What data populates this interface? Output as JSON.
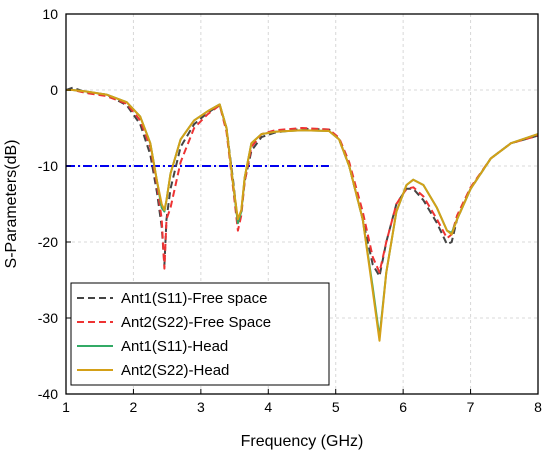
{
  "chart_data": {
    "type": "line",
    "title": "",
    "xlabel": "Frequency (GHz)",
    "ylabel": "S-Parameters(dB)",
    "xlim": [
      1,
      8
    ],
    "ylim": [
      -40,
      10
    ],
    "xticks": [
      1,
      2,
      3,
      4,
      5,
      6,
      7,
      8
    ],
    "yticks": [
      10,
      0,
      -10,
      -20,
      -30,
      -40
    ],
    "grid": true,
    "legend_position": "bottom-left",
    "reference_line": {
      "y": -10,
      "x": [
        1,
        4.9
      ],
      "color": "#0000ee"
    },
    "series": [
      {
        "name": "Ant1(S11)-Free space",
        "color": "#444444",
        "style": "dash",
        "x": [
          1.0,
          1.1,
          1.3,
          1.6,
          1.9,
          2.1,
          2.25,
          2.35,
          2.42,
          2.46,
          2.49,
          2.55,
          2.7,
          2.9,
          3.1,
          3.28,
          3.38,
          3.48,
          3.55,
          3.6,
          3.65,
          3.75,
          3.9,
          4.1,
          4.5,
          4.9,
          5.05,
          5.2,
          5.4,
          5.55,
          5.65,
          5.75,
          5.9,
          6.05,
          6.15,
          6.3,
          6.5,
          6.65,
          6.72,
          6.8,
          7.0,
          7.3,
          7.6,
          8.0
        ],
        "y": [
          0.0,
          0.3,
          -0.3,
          -0.6,
          -2.0,
          -4.5,
          -8.5,
          -13.5,
          -18.0,
          -23.0,
          -17.0,
          -13.0,
          -7.5,
          -4.5,
          -3.0,
          -2.0,
          -5.0,
          -12.0,
          -17.5,
          -16.0,
          -12.0,
          -8.0,
          -6.2,
          -5.6,
          -5.1,
          -5.2,
          -6.5,
          -10.0,
          -17.0,
          -23.0,
          -24.5,
          -20.0,
          -15.0,
          -13.0,
          -13.0,
          -14.5,
          -17.5,
          -20.3,
          -20.0,
          -17.0,
          -13.0,
          -9.0,
          -7.0,
          -6.0
        ]
      },
      {
        "name": "Ant2(S22)-Free Space",
        "color": "#ee3333",
        "style": "dash",
        "x": [
          1.0,
          1.1,
          1.3,
          1.6,
          1.9,
          2.1,
          2.25,
          2.35,
          2.42,
          2.46,
          2.49,
          2.55,
          2.7,
          2.9,
          3.1,
          3.28,
          3.38,
          3.48,
          3.55,
          3.6,
          3.65,
          3.75,
          3.9,
          4.1,
          4.5,
          4.9,
          5.05,
          5.2,
          5.4,
          5.55,
          5.65,
          5.75,
          5.9,
          6.05,
          6.15,
          6.3,
          6.5,
          6.65,
          6.72,
          6.8,
          7.0,
          7.3,
          7.6,
          8.0
        ],
        "y": [
          0.0,
          0.0,
          -0.4,
          -0.8,
          -1.8,
          -4.0,
          -7.5,
          -12.5,
          -17.0,
          -23.5,
          -17.0,
          -15.5,
          -9.5,
          -5.0,
          -3.2,
          -2.0,
          -5.5,
          -13.0,
          -18.5,
          -16.5,
          -12.0,
          -7.5,
          -5.8,
          -5.3,
          -5.0,
          -5.2,
          -6.3,
          -9.5,
          -16.0,
          -22.0,
          -24.0,
          -20.0,
          -15.0,
          -13.0,
          -12.8,
          -14.0,
          -17.0,
          -19.5,
          -19.0,
          -16.5,
          -12.8,
          -9.0,
          -7.0,
          -6.0
        ]
      },
      {
        "name": "Ant1(S11)-Head",
        "color": "#33aa66",
        "style": "solid",
        "x": [
          1.0,
          1.1,
          1.3,
          1.6,
          1.9,
          2.1,
          2.25,
          2.35,
          2.42,
          2.46,
          2.49,
          2.55,
          2.7,
          2.9,
          3.1,
          3.28,
          3.38,
          3.48,
          3.55,
          3.6,
          3.65,
          3.75,
          3.9,
          4.1,
          4.5,
          4.9,
          5.05,
          5.2,
          5.4,
          5.55,
          5.65,
          5.75,
          5.9,
          6.05,
          6.15,
          6.3,
          6.5,
          6.65,
          6.72,
          6.8,
          7.0,
          7.3,
          7.6,
          8.0
        ],
        "y": [
          0.0,
          0.0,
          -0.2,
          -0.6,
          -1.6,
          -3.5,
          -7.0,
          -12.0,
          -15.5,
          -16.0,
          -14.5,
          -11.0,
          -6.5,
          -4.0,
          -2.8,
          -1.9,
          -5.0,
          -12.5,
          -17.5,
          -16.0,
          -11.5,
          -7.0,
          -5.8,
          -5.5,
          -5.3,
          -5.4,
          -6.5,
          -10.0,
          -17.0,
          -26.0,
          -32.5,
          -24.0,
          -16.0,
          -12.5,
          -11.8,
          -12.5,
          -15.5,
          -18.5,
          -18.8,
          -17.0,
          -13.0,
          -9.0,
          -7.0,
          -5.8
        ]
      },
      {
        "name": "Ant2(S22)-Head",
        "color": "#d4a017",
        "style": "solid",
        "x": [
          1.0,
          1.1,
          1.3,
          1.6,
          1.9,
          2.1,
          2.25,
          2.35,
          2.42,
          2.46,
          2.49,
          2.55,
          2.7,
          2.9,
          3.1,
          3.28,
          3.38,
          3.48,
          3.55,
          3.6,
          3.65,
          3.75,
          3.9,
          4.1,
          4.5,
          4.9,
          5.05,
          5.2,
          5.4,
          5.55,
          5.65,
          5.75,
          5.9,
          6.05,
          6.15,
          6.3,
          6.5,
          6.65,
          6.72,
          6.8,
          7.0,
          7.3,
          7.6,
          8.0
        ],
        "y": [
          0.0,
          0.0,
          -0.2,
          -0.6,
          -1.6,
          -3.5,
          -7.0,
          -12.0,
          -15.0,
          -15.8,
          -14.5,
          -11.0,
          -6.5,
          -4.0,
          -2.8,
          -1.9,
          -5.0,
          -12.5,
          -17.0,
          -15.8,
          -11.5,
          -7.0,
          -5.8,
          -5.5,
          -5.3,
          -5.4,
          -6.5,
          -10.0,
          -17.0,
          -26.5,
          -33.0,
          -24.0,
          -16.0,
          -12.5,
          -11.8,
          -12.5,
          -15.5,
          -18.5,
          -19.0,
          -17.0,
          -13.0,
          -9.0,
          -7.0,
          -5.8
        ]
      }
    ]
  }
}
